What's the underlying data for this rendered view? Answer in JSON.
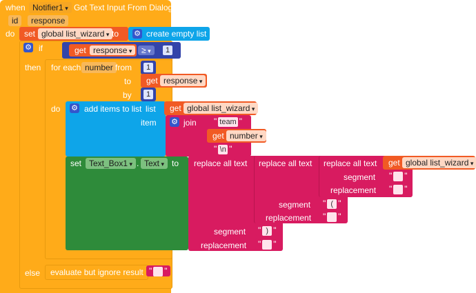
{
  "event": {
    "when": "when",
    "component": "Notifier1",
    "event_name": "Got Text Input From Dialog",
    "params": [
      "id",
      "response"
    ],
    "do": "do"
  },
  "set_wizard": {
    "set": "set",
    "var": "global list_wizard",
    "to": "to",
    "create": "create empty list"
  },
  "if_block": {
    "if": "if",
    "then": "then",
    "else": "else",
    "get": "get",
    "var": "response",
    "op": "≥",
    "value": "1"
  },
  "for_each": {
    "label": "for each",
    "var": "number",
    "from": "from",
    "from_val": "1",
    "to": "to",
    "to_get": "get",
    "to_var": "response",
    "by": "by",
    "by_val": "1",
    "do": "do"
  },
  "add_items": {
    "label": "add items to list",
    "list": "list",
    "get": "get",
    "list_var": "global list_wizard",
    "item": "item",
    "join": "join",
    "s1": "team",
    "get2": "get",
    "var2": "number",
    "s3": "\\n"
  },
  "set_text": {
    "set": "set",
    "component": "Text_Box1",
    "dot": ".",
    "prop": "Text",
    "to": "to",
    "replace": "replace all text",
    "get": "get",
    "var": "global list_wizard",
    "segment": "segment",
    "replacement": "replacement",
    "seg1": "(",
    "seg2": ")",
    "seg_inner": ""
  },
  "else_block": {
    "label": "evaluate but ignore result"
  }
}
